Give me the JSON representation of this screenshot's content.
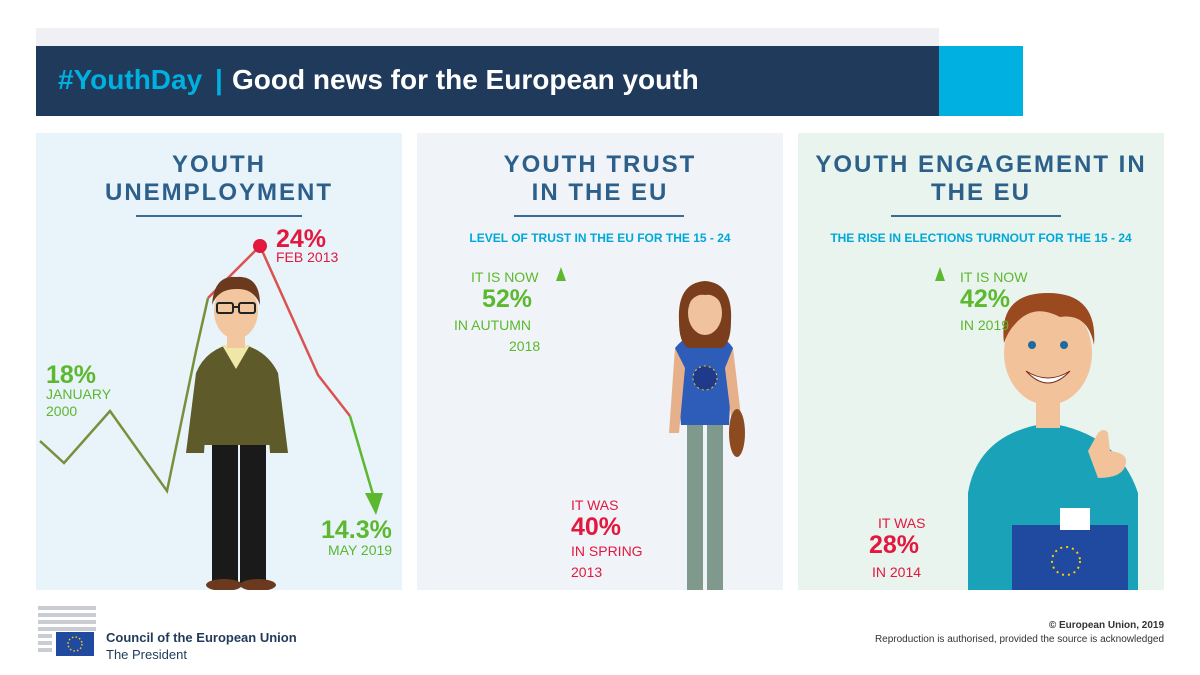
{
  "header": {
    "hashtag": "#YouthDay",
    "separator": "|",
    "title": "Good news for the European youth"
  },
  "panels": {
    "unemployment": {
      "title_line1": "YOUTH",
      "title_line2": "UNEMPLOYMENT",
      "peak_value": "24%",
      "peak_date": "FEB 2013",
      "start_value": "18%",
      "start_date_line1": "JANUARY",
      "start_date_line2": "2000",
      "end_value": "14.3%",
      "end_date": "MAY 2019"
    },
    "trust": {
      "title_line1": "YOUTH TRUST",
      "title_line2": "IN THE EU",
      "subtitle": "LEVEL OF TRUST IN THE EU FOR THE 15 - 24",
      "now_label": "IT IS NOW",
      "now_value": "52%",
      "now_when_line1": "IN AUTUMN",
      "now_when_line2": "2018",
      "was_label": "IT WAS",
      "was_value": "40%",
      "was_when_line1": "IN SPRING",
      "was_when_line2": "2013"
    },
    "engagement": {
      "title_line1": "YOUTH ENGAGEMENT IN",
      "title_line2": "THE EU",
      "subtitle": "THE RISE IN ELECTIONS TURNOUT FOR THE 15 - 24",
      "now_label": "IT IS NOW",
      "now_value": "42%",
      "now_when": "IN 2019",
      "was_label": "IT WAS",
      "was_value": "28%",
      "was_when": "IN 2014"
    }
  },
  "footer": {
    "org": "Council of the European Union",
    "role": "The President",
    "copyright": "© European Union, 2019",
    "reproduction": "Reproduction is authorised, provided the source is acknowledged"
  },
  "colors": {
    "navy": "#1f3a5a",
    "cyan": "#00b0e0",
    "green": "#5cb82e",
    "red": "#e2183e",
    "title_blue": "#2c5f8a"
  }
}
